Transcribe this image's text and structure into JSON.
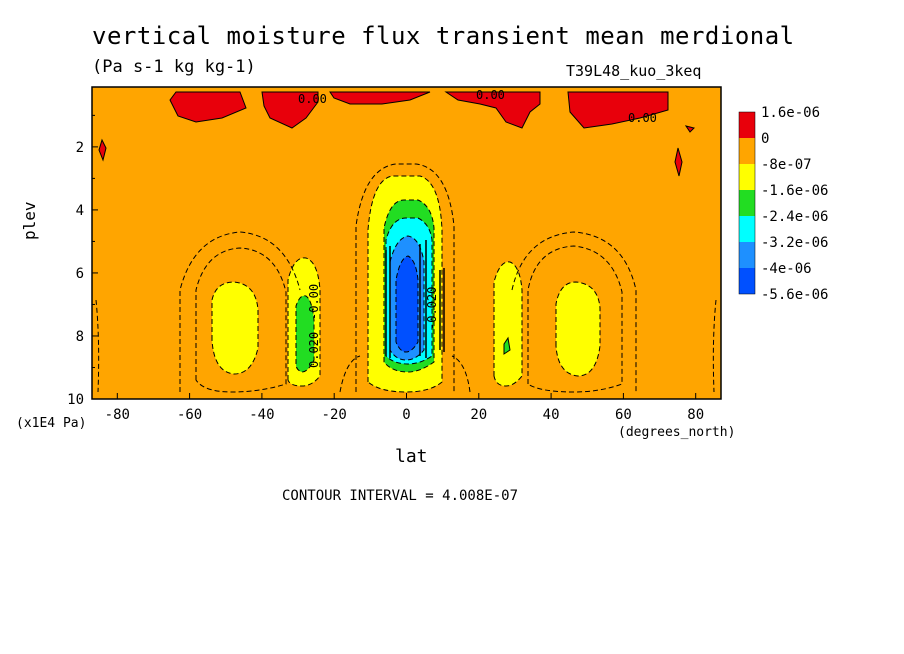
{
  "chart_data": {
    "type": "contour",
    "title": "vertical moisture flux transient mean merdional",
    "units": "(Pa s-1 kg kg-1)",
    "run_id": "T39L48_kuo_3keq",
    "xlabel": "lat",
    "x_units": "(degrees_north)",
    "ylabel": "plev",
    "y_units": "(x1E4 Pa)",
    "xlim": [
      -87,
      87
    ],
    "ylim": [
      0.1,
      10
    ],
    "y_inverted": true,
    "x_ticks": [
      "-80",
      "-60",
      "-40",
      "-20",
      "0",
      "20",
      "40",
      "60",
      "80"
    ],
    "x_tick_values": [
      -80,
      -60,
      -40,
      -20,
      0,
      20,
      40,
      60,
      80
    ],
    "y_ticks": [
      "2",
      "4",
      "6",
      "8",
      "10"
    ],
    "y_tick_values": [
      2,
      4,
      6,
      8,
      10
    ],
    "legend_labels": [
      "1.6e-06",
      "0",
      "-8e-07",
      "-1.6e-06",
      "-2.4e-06",
      "-3.2e-06",
      "-4e-06",
      "-5.6e-06"
    ],
    "legend_colors": [
      "#e8000b",
      "#ffa500",
      "#ffff00",
      "#22dd22",
      "#00ffff",
      "#1e90ff",
      "#0050ff"
    ],
    "contour_labels": [
      "0.00",
      "0.00",
      "0.00",
      "0.020",
      "-0.020",
      "-0.00"
    ],
    "contour_interval": "CONTOUR INTERVAL = 4.008E-07",
    "fields": [
      {
        "lat": 0,
        "plev": 6.5,
        "min_level_band": "-5.6e-06 to -4e-06"
      },
      {
        "lat": -28,
        "plev": 8.3,
        "min_level_band": "-2.4e-06 to -1.6e-06"
      },
      {
        "lat": 28,
        "plev": 8.0,
        "min_level_band": "-1.6e-06 to -8e-07"
      },
      {
        "lat": -50,
        "plev": 8.0,
        "min_level_band": "-1.6e-06 to -8e-07"
      },
      {
        "lat": 48,
        "plev": 7.8,
        "min_level_band": "-1.6e-06 to -8e-07"
      }
    ]
  }
}
